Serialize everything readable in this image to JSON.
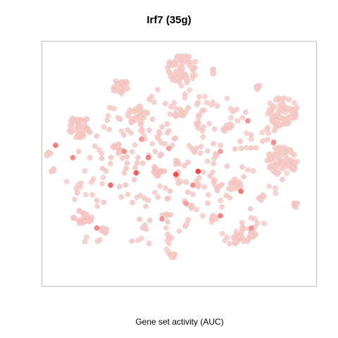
{
  "chart_data": {
    "type": "scatter",
    "title": "Irf7 (35g)",
    "xlabel": "Gene set activity (AUC)",
    "ylabel": "",
    "grid": false,
    "legend": "none",
    "colors": {
      "low": "#f7d3cf",
      "high": "#ee2a2a",
      "edge": "#eab8b3",
      "frame": "#bdbdbd"
    },
    "xlim": [
      -40,
      40
    ],
    "ylim": [
      -40,
      40
    ],
    "clusters": [
      {
        "x": 1,
        "y": 31,
        "r": 4.5,
        "n": 70,
        "auc": 0.05
      },
      {
        "x": -17,
        "y": 25,
        "r": 2.4,
        "n": 20,
        "auc": 0.06
      },
      {
        "x": 10,
        "y": 30,
        "r": 0.8,
        "n": 5,
        "auc": 0.05
      },
      {
        "x": 23,
        "y": 25,
        "r": 0.9,
        "n": 6,
        "auc": 0.05
      },
      {
        "x": 30,
        "y": 17,
        "r": 4.5,
        "n": 70,
        "auc": 0.05
      },
      {
        "x": -12,
        "y": 16,
        "r": 3.0,
        "n": 30,
        "auc": 0.05
      },
      {
        "x": -29,
        "y": 12,
        "r": 3.5,
        "n": 40,
        "auc": 0.06
      },
      {
        "x": 30,
        "y": 1,
        "r": 4.5,
        "n": 75,
        "auc": 0.05
      },
      {
        "x": -38,
        "y": 3,
        "r": 0.9,
        "n": 5,
        "auc": 0.05
      },
      {
        "x": -37,
        "y": -2,
        "r": 0.7,
        "n": 4,
        "auc": 0.05
      },
      {
        "x": -28,
        "y": -17,
        "r": 3.0,
        "n": 25,
        "auc": 0.08
      },
      {
        "x": 19,
        "y": -24,
        "r": 3.5,
        "n": 35,
        "auc": 0.05
      },
      {
        "x": 34,
        "y": -13,
        "r": 1.2,
        "n": 8,
        "auc": 0.05
      },
      {
        "x": -2,
        "y": -30,
        "r": 1.0,
        "n": 6,
        "auc": 0.05
      },
      {
        "x": -22,
        "y": -22,
        "r": 1.2,
        "n": 8,
        "auc": 0.06
      },
      {
        "x": 10,
        "y": -18,
        "r": 1.2,
        "n": 8,
        "auc": 0.05
      },
      {
        "x": -18,
        "y": 5,
        "r": 1.6,
        "n": 12,
        "auc": 0.08
      },
      {
        "x": 14,
        "y": 12,
        "r": 1.5,
        "n": 10,
        "auc": 0.06
      },
      {
        "x": 16,
        "y": -7,
        "r": 2.0,
        "n": 15,
        "auc": 0.06
      },
      {
        "x": -6,
        "y": -2,
        "r": 2.0,
        "n": 14,
        "auc": 0.1
      },
      {
        "x": 0,
        "y": 16,
        "r": 1.6,
        "n": 10,
        "auc": 0.06
      },
      {
        "x": 24,
        "y": -11,
        "r": 1.0,
        "n": 6,
        "auc": 0.05
      }
    ],
    "scattered": [
      {
        "x": -25,
        "y": -5,
        "auc": 0.05
      },
      {
        "x": -20,
        "y": 0,
        "auc": 0.08
      },
      {
        "x": -15,
        "y": -10,
        "auc": 0.06
      },
      {
        "x": -10,
        "y": 8,
        "auc": 0.05
      },
      {
        "x": -5,
        "y": 12,
        "auc": 0.07
      },
      {
        "x": 5,
        "y": 5,
        "auc": 0.06
      },
      {
        "x": 10,
        "y": 0,
        "auc": 0.05
      },
      {
        "x": 12,
        "y": -12,
        "auc": 0.06
      },
      {
        "x": 5,
        "y": -15,
        "auc": 0.05
      },
      {
        "x": -5,
        "y": -18,
        "auc": 0.06
      },
      {
        "x": -12,
        "y": -25,
        "auc": 0.05
      },
      {
        "x": 0,
        "y": -22,
        "auc": 0.05
      },
      {
        "x": 8,
        "y": 20,
        "auc": 0.05
      },
      {
        "x": -8,
        "y": 22,
        "auc": 0.05
      },
      {
        "x": 18,
        "y": 5,
        "auc": 0.06
      },
      {
        "x": -22,
        "y": 12,
        "auc": 0.05
      },
      {
        "x": 22,
        "y": -18,
        "auc": 0.05
      },
      {
        "x": -30,
        "y": -8,
        "auc": 0.05
      },
      {
        "x": 2,
        "y": -6,
        "auc": 0.07
      },
      {
        "x": -2,
        "y": 6,
        "auc": 0.06
      },
      {
        "x": 15,
        "y": 18,
        "auc": 0.05
      },
      {
        "x": -16,
        "y": -3,
        "auc": 0.09
      },
      {
        "x": 7,
        "y": 12,
        "auc": 0.05
      },
      {
        "x": -9,
        "y": -12,
        "auc": 0.07
      },
      {
        "x": 20,
        "y": -2,
        "auc": 0.06
      },
      {
        "x": -26,
        "y": 2,
        "auc": 0.07
      },
      {
        "x": 4,
        "y": -10,
        "auc": 0.06
      },
      {
        "x": -12,
        "y": 2,
        "auc": 0.08
      },
      {
        "x": 12,
        "y": 6,
        "auc": 0.06
      },
      {
        "x": -4,
        "y": -8,
        "auc": 0.07
      },
      {
        "x": 26,
        "y": 10,
        "auc": 0.05
      },
      {
        "x": -19,
        "y": 18,
        "auc": 0.05
      },
      {
        "x": 3,
        "y": 24,
        "auc": 0.05
      },
      {
        "x": -3,
        "y": -26,
        "auc": 0.05
      },
      {
        "x": 14,
        "y": -24,
        "auc": 0.05
      },
      {
        "x": -24,
        "y": -12,
        "auc": 0.06
      },
      {
        "x": 9,
        "y": -4,
        "auc": 0.07
      },
      {
        "x": -7,
        "y": 4,
        "auc": 0.07
      },
      {
        "x": 17,
        "y": 14,
        "auc": 0.05
      },
      {
        "x": -14,
        "y": 10,
        "auc": 0.06
      },
      {
        "x": 6,
        "y": 16,
        "auc": 0.05
      },
      {
        "x": -1,
        "y": 18,
        "auc": 0.05
      },
      {
        "x": 21,
        "y": 8,
        "auc": 0.05
      },
      {
        "x": -27,
        "y": -24,
        "auc": 0.05
      },
      {
        "x": 28,
        "y": -8,
        "auc": 0.05
      },
      {
        "x": -10,
        "y": -20,
        "auc": 0.06
      },
      {
        "x": 11,
        "y": -8,
        "auc": 0.06
      },
      {
        "x": 0,
        "y": 0,
        "auc": 0.08
      }
    ],
    "highlights": [
      {
        "x": 5.5,
        "y": -2.5,
        "auc": 0.95
      },
      {
        "x": -1,
        "y": -3.5,
        "auc": 0.85
      },
      {
        "x": -12.5,
        "y": -3,
        "auc": 0.8
      },
      {
        "x": -20,
        "y": -7,
        "auc": 0.7
      },
      {
        "x": -36,
        "y": 6,
        "auc": 0.6
      },
      {
        "x": -31,
        "y": 2,
        "auc": 0.5
      },
      {
        "x": 18,
        "y": -9,
        "auc": 0.6
      },
      {
        "x": 12,
        "y": -17,
        "auc": 0.55
      },
      {
        "x": 27.5,
        "y": 7,
        "auc": 0.45
      },
      {
        "x": -9,
        "y": 2,
        "auc": 0.55
      },
      {
        "x": 4,
        "y": -7,
        "auc": 0.5
      },
      {
        "x": 20,
        "y": 14,
        "auc": 0.45
      },
      {
        "x": -24,
        "y": -21,
        "auc": 0.5
      },
      {
        "x": -16,
        "y": 4,
        "auc": 0.45
      },
      {
        "x": -5,
        "y": -18,
        "auc": 0.4
      },
      {
        "x": -11,
        "y": 8,
        "auc": 0.4
      },
      {
        "x": 21,
        "y": -21,
        "auc": 0.4
      },
      {
        "x": 12,
        "y": 4,
        "auc": 0.38
      },
      {
        "x": -3,
        "y": 5,
        "auc": 0.35
      },
      {
        "x": 2,
        "y": -13,
        "auc": 0.35
      }
    ]
  }
}
